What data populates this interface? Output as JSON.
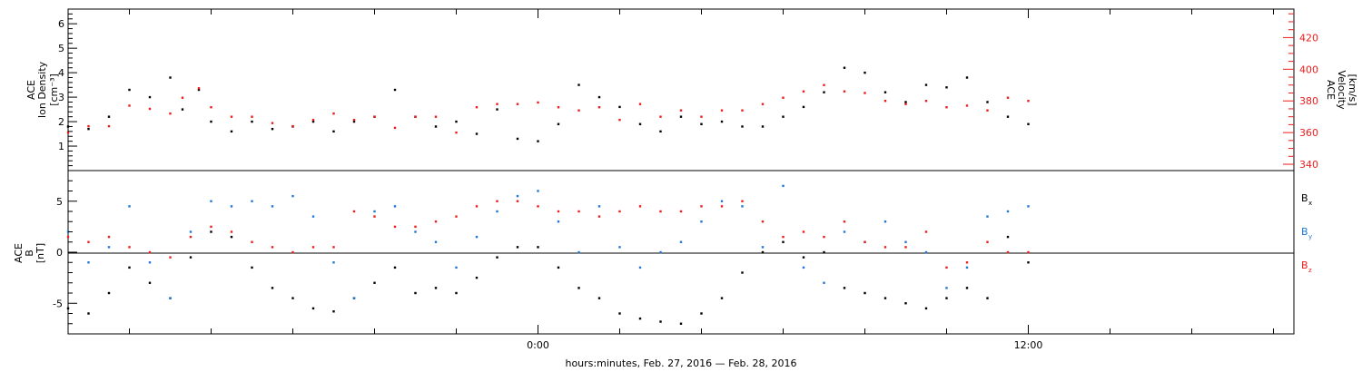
{
  "chart_data": [
    {
      "type": "scatter",
      "ylabel_left": [
        "ACE",
        "Ion Density",
        "[cm⁻³]"
      ],
      "ylabel_right": [
        "ACE",
        "Velocity",
        "[km/s]"
      ],
      "x_ticks": [
        "0:00",
        "12:00"
      ],
      "ylim_left": [
        0,
        6.6
      ],
      "yticks_left": [
        1,
        2,
        3,
        4,
        5,
        6
      ],
      "ylim_right": [
        336,
        438
      ],
      "yticks_right": [
        340,
        360,
        380,
        400,
        420
      ],
      "x_range_hours": [
        -11.5,
        18.5
      ],
      "series": [
        {
          "role": "left-axis",
          "color": "#000000",
          "x_hours": [
            -11.5,
            -11.0,
            -10.5,
            -10.0,
            -9.5,
            -9.0,
            -8.7,
            -8.3,
            -8.0,
            -7.5,
            -7.0,
            -6.5,
            -6.0,
            -5.5,
            -5.0,
            -4.5,
            -4.0,
            -3.5,
            -3.0,
            -2.5,
            -2.0,
            -1.5,
            -1.0,
            -0.5,
            0.0,
            0.5,
            1.0,
            1.5,
            2.0,
            2.5,
            3.0,
            3.5,
            4.0,
            4.5,
            5.0,
            5.5,
            6.0,
            6.5,
            7.0,
            7.5,
            8.0,
            8.5,
            9.0,
            9.5,
            10.0,
            10.5,
            11.0,
            11.5,
            12.0
          ],
          "values": [
            1.8,
            1.7,
            2.2,
            3.3,
            3.0,
            3.8,
            2.5,
            3.3,
            2.0,
            1.6,
            2.0,
            1.7,
            1.8,
            2.0,
            1.6,
            2.0,
            2.2,
            3.3,
            2.2,
            1.8,
            2.0,
            1.5,
            2.5,
            1.3,
            1.2,
            1.9,
            3.5,
            3.0,
            2.6,
            1.9,
            1.6,
            2.2,
            1.9,
            2.0,
            1.8,
            1.8,
            2.2,
            2.6,
            3.2,
            4.2,
            4.0,
            3.2,
            2.8,
            3.5,
            3.4,
            3.8,
            2.8,
            2.2,
            1.9
          ]
        },
        {
          "role": "right-axis",
          "color": "#ee1c1c",
          "x_hours": [
            -11.5,
            -11.0,
            -10.5,
            -10.0,
            -9.5,
            -9.0,
            -8.7,
            -8.3,
            -8.0,
            -7.5,
            -7.0,
            -6.5,
            -6.0,
            -5.5,
            -5.0,
            -4.5,
            -4.0,
            -3.5,
            -3.0,
            -2.5,
            -2.0,
            -1.5,
            -1.0,
            -0.5,
            0.0,
            0.5,
            1.0,
            1.5,
            2.0,
            2.5,
            3.0,
            3.5,
            4.0,
            4.5,
            5.0,
            5.5,
            6.0,
            6.5,
            7.0,
            7.5,
            8.0,
            8.5,
            9.0,
            9.5,
            10.0,
            10.5,
            11.0,
            11.5,
            12.0
          ],
          "values": [
            360,
            364,
            364,
            377,
            375,
            372,
            382,
            388,
            376,
            370,
            370,
            366,
            364,
            368,
            372,
            368,
            370,
            363,
            370,
            370,
            360,
            376,
            378,
            378,
            379,
            376,
            374,
            376,
            368,
            378,
            370,
            374,
            370,
            374,
            374,
            378,
            382,
            386,
            390,
            386,
            385,
            380,
            378,
            380,
            376,
            377,
            374,
            382,
            380
          ]
        }
      ]
    },
    {
      "type": "scatter",
      "ylabel_left": [
        "ACE",
        "B",
        "[nT]"
      ],
      "x_ticks": [
        "0:00",
        "12:00"
      ],
      "xlabel": "hours:minutes, Feb. 27, 2016 — Feb. 28, 2016",
      "ylim": [
        -8,
        8
      ],
      "yticks": [
        -5,
        0,
        5
      ],
      "x_range_hours": [
        -11.5,
        18.5
      ],
      "legend": [
        "Bx",
        "By",
        "Bz"
      ],
      "series": [
        {
          "name": "Bx",
          "color": "#000000",
          "x_hours": [
            -11.5,
            -11.0,
            -10.5,
            -10.0,
            -9.5,
            -9.0,
            -8.5,
            -8.0,
            -7.5,
            -7.0,
            -6.5,
            -6.0,
            -5.5,
            -5.0,
            -4.5,
            -4.0,
            -3.5,
            -3.0,
            -2.5,
            -2.0,
            -1.5,
            -1.0,
            -0.5,
            0.0,
            0.5,
            1.0,
            1.5,
            2.0,
            2.5,
            3.0,
            3.5,
            4.0,
            4.5,
            5.0,
            5.5,
            6.0,
            6.5,
            7.0,
            7.5,
            8.0,
            8.5,
            9.0,
            9.5,
            10.0,
            10.5,
            11.0,
            11.5,
            12.0
          ],
          "values": [
            -5.5,
            -6.0,
            -4.0,
            -1.5,
            -3.0,
            -4.5,
            -0.5,
            2.0,
            1.5,
            -1.5,
            -3.5,
            -4.5,
            -5.5,
            -5.8,
            -4.5,
            -3.0,
            -1.5,
            -4.0,
            -3.5,
            -4.0,
            -2.5,
            -0.5,
            0.5,
            0.5,
            -1.5,
            -3.5,
            -4.5,
            -6.0,
            -6.5,
            -6.8,
            -7.0,
            -6.0,
            -4.5,
            -2.0,
            0.0,
            1.0,
            -0.5,
            0.0,
            -3.5,
            -4.0,
            -4.5,
            -5.0,
            -5.5,
            -4.5,
            -3.5,
            -4.5,
            1.5,
            -1.0
          ]
        },
        {
          "name": "By",
          "color": "#1f78d6",
          "x_hours": [
            -11.5,
            -11.0,
            -10.5,
            -10.0,
            -9.5,
            -9.0,
            -8.5,
            -8.0,
            -7.5,
            -7.0,
            -6.5,
            -6.0,
            -5.5,
            -5.0,
            -4.5,
            -4.0,
            -3.5,
            -3.0,
            -2.5,
            -2.0,
            -1.5,
            -1.0,
            -0.5,
            0.0,
            0.5,
            1.0,
            1.5,
            2.0,
            2.5,
            3.0,
            3.5,
            4.0,
            4.5,
            5.0,
            5.5,
            6.0,
            6.5,
            7.0,
            7.5,
            8.0,
            8.5,
            9.0,
            9.5,
            10.0,
            10.5,
            11.0,
            11.5,
            12.0
          ],
          "values": [
            2.0,
            -1.0,
            0.5,
            4.5,
            -1.0,
            -4.5,
            2.0,
            5.0,
            4.5,
            5.0,
            4.5,
            5.5,
            3.5,
            -1.0,
            -4.5,
            4.0,
            4.5,
            2.0,
            1.0,
            -1.5,
            1.5,
            4.0,
            5.5,
            6.0,
            3.0,
            0.0,
            4.5,
            0.5,
            -1.5,
            0.0,
            1.0,
            3.0,
            5.0,
            4.5,
            0.5,
            6.5,
            -1.5,
            -3.0,
            2.0,
            1.0,
            3.0,
            1.0,
            0.0,
            -3.5,
            -1.5,
            3.5,
            4.0,
            4.5
          ]
        },
        {
          "name": "Bz",
          "color": "#ee1c1c",
          "x_hours": [
            -11.5,
            -11.0,
            -10.5,
            -10.0,
            -9.5,
            -9.0,
            -8.5,
            -8.0,
            -7.5,
            -7.0,
            -6.5,
            -6.0,
            -5.5,
            -5.0,
            -4.5,
            -4.0,
            -3.5,
            -3.0,
            -2.5,
            -2.0,
            -1.5,
            -1.0,
            -0.5,
            0.0,
            0.5,
            1.0,
            1.5,
            2.0,
            2.5,
            3.0,
            3.5,
            4.0,
            4.5,
            5.0,
            5.5,
            6.0,
            6.5,
            7.0,
            7.5,
            8.0,
            8.5,
            9.0,
            9.5,
            10.0,
            10.5,
            11.0,
            11.5,
            12.0
          ],
          "values": [
            1.5,
            1.0,
            1.5,
            0.5,
            0.0,
            -0.5,
            1.5,
            2.5,
            2.0,
            1.0,
            0.5,
            0.0,
            0.5,
            0.5,
            4.0,
            3.5,
            2.5,
            2.5,
            3.0,
            3.5,
            4.5,
            5.0,
            5.0,
            4.5,
            4.0,
            4.0,
            3.5,
            4.0,
            4.5,
            4.0,
            4.0,
            4.5,
            4.5,
            5.0,
            3.0,
            1.5,
            2.0,
            1.5,
            3.0,
            1.0,
            0.5,
            0.5,
            2.0,
            -1.5,
            -1.0,
            1.0,
            0.0,
            0.0
          ]
        }
      ]
    }
  ]
}
